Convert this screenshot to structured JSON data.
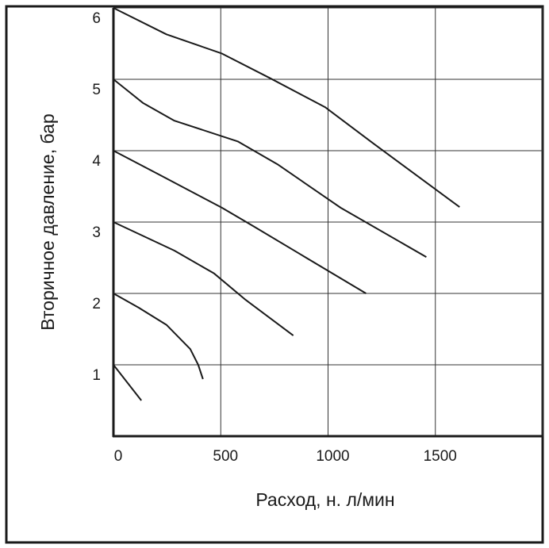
{
  "chart_data": {
    "type": "line",
    "x_label": "Расход, н. л/мин",
    "y_label": "Вторичное давление, бар",
    "xlim": [
      0,
      2000
    ],
    "ylim": [
      0,
      6
    ],
    "xticks": [
      0,
      500,
      1000,
      1500
    ],
    "yticks": [
      1,
      2,
      3,
      4,
      5,
      6
    ],
    "grid": true,
    "color": "#1a1a1a",
    "series": [
      {
        "x": [
          0,
          130
        ],
        "values": [
          1,
          0.5
        ]
      },
      {
        "x": [
          0,
          118,
          247,
          358,
          395,
          417
        ],
        "values": [
          2,
          1.8,
          1.56,
          1.22,
          1.0,
          0.8
        ]
      },
      {
        "x": [
          0,
          284,
          469,
          616,
          838
        ],
        "values": [
          3,
          2.6,
          2.28,
          1.91,
          1.41
        ]
      },
      {
        "x": [
          0,
          210,
          506,
          653,
          1177
        ],
        "values": [
          4,
          3.67,
          3.2,
          2.94,
          2.0
        ]
      },
      {
        "x": [
          0,
          137,
          284,
          579,
          764,
          1059,
          1458
        ],
        "values": [
          5,
          4.67,
          4.42,
          4.13,
          3.81,
          3.2,
          2.51
        ]
      },
      {
        "x": [
          0,
          247,
          506,
          727,
          986,
          1207,
          1613
        ],
        "values": [
          6,
          5.63,
          5.36,
          5.02,
          4.61,
          4.11,
          3.21
        ]
      }
    ]
  }
}
